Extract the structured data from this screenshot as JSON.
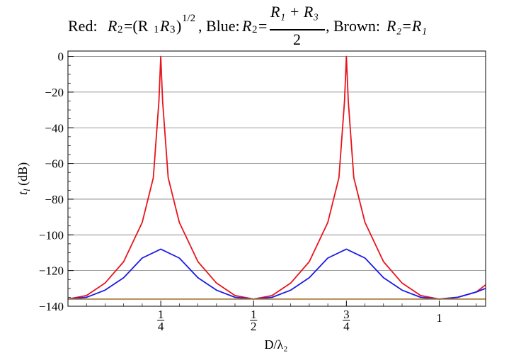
{
  "chart_data": {
    "type": "line",
    "title": {
      "red_prefix": "Red:",
      "red_formula_1": "R",
      "red_sub_2": "2",
      "red_formula_2": "=(R",
      "red_sub_1": "1",
      "red_formula_3": "R",
      "red_sub_3": "3",
      "red_formula_4": ")",
      "red_sup": "1/2",
      "blue_prefix": ", Blue:",
      "blue_formula_1": "R",
      "blue_sub_2": "2",
      "blue_eq": "=",
      "blue_numerator": "R₁ + R₃",
      "blue_denominator": "2",
      "brown_prefix": ", Brown:",
      "brown_formula": "R₂=R₁"
    },
    "xlabel": "D/λ₂",
    "ylabel": "t_l (dB)",
    "ylabel_main": "t",
    "ylabel_sub": "l",
    "ylabel_unit": " (dB)",
    "xlim": [
      0,
      1.125
    ],
    "ylim": [
      -140,
      3
    ],
    "x_ticks": [
      {
        "value": 0.25,
        "num": "1",
        "den": "4"
      },
      {
        "value": 0.5,
        "num": "1",
        "den": "2"
      },
      {
        "value": 0.75,
        "num": "3",
        "den": "4"
      },
      {
        "value": 1.0,
        "label": "1"
      }
    ],
    "y_ticks": [
      0,
      -20,
      -40,
      -60,
      -80,
      -100,
      -120,
      -140
    ],
    "grid": "horizontal",
    "series": [
      {
        "color": "#e8141b",
        "x": [
          0.0,
          0.05,
          0.1,
          0.15,
          0.2,
          0.23,
          0.245,
          0.25,
          0.255,
          0.27,
          0.3,
          0.35,
          0.4,
          0.45,
          0.5,
          0.55,
          0.6,
          0.65,
          0.7,
          0.73,
          0.745,
          0.75,
          0.755,
          0.77,
          0.8,
          0.85,
          0.9,
          0.95,
          1.0,
          1.05,
          1.1,
          1.125
        ],
        "y": [
          -136,
          -134,
          -127,
          -115,
          -93,
          -68,
          -25,
          0,
          -25,
          -68,
          -93,
          -115,
          -127,
          -134,
          -136,
          -134,
          -127,
          -115,
          -93,
          -68,
          -25,
          0,
          -25,
          -68,
          -93,
          -115,
          -127,
          -134,
          -136,
          -135,
          -132,
          -128
        ]
      },
      {
        "color": "#1a1ae6",
        "x": [
          0.0,
          0.05,
          0.1,
          0.15,
          0.2,
          0.25,
          0.3,
          0.35,
          0.4,
          0.45,
          0.5,
          0.55,
          0.6,
          0.65,
          0.7,
          0.75,
          0.8,
          0.85,
          0.9,
          0.95,
          1.0,
          1.05,
          1.1,
          1.125
        ],
        "y": [
          -136,
          -135,
          -131,
          -124,
          -113,
          -108,
          -113,
          -124,
          -131,
          -135,
          -136,
          -135,
          -131,
          -124,
          -113,
          -108,
          -113,
          -124,
          -131,
          -135,
          -136,
          -135,
          -132,
          -130
        ]
      },
      {
        "color": "#a67c3a",
        "x": [
          0.0,
          1.125
        ],
        "y": [
          -136,
          -136
        ]
      }
    ]
  }
}
